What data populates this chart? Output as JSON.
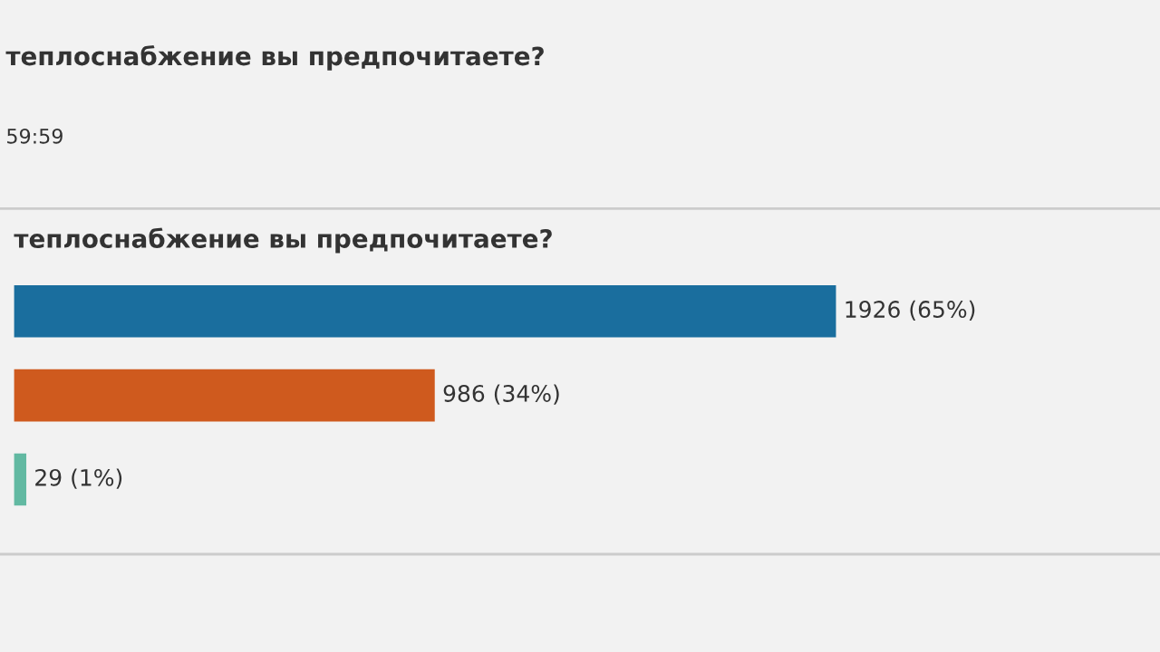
{
  "chart_data": {
    "type": "bar",
    "orientation": "horizontal",
    "title": "теплоснабжение вы предпочитаете?",
    "annotations": [
      "теплоснабжение вы предпочитаете?",
      "59:59"
    ],
    "categories": [
      null,
      null,
      null
    ],
    "values": [
      1926,
      986,
      29
    ],
    "colors": [
      "#1a6e9e",
      "#cf5a1e",
      "#62b9a2"
    ],
    "value_labels": [
      "1926 (65%)",
      "986 (34%)",
      "29 (1%)"
    ]
  }
}
